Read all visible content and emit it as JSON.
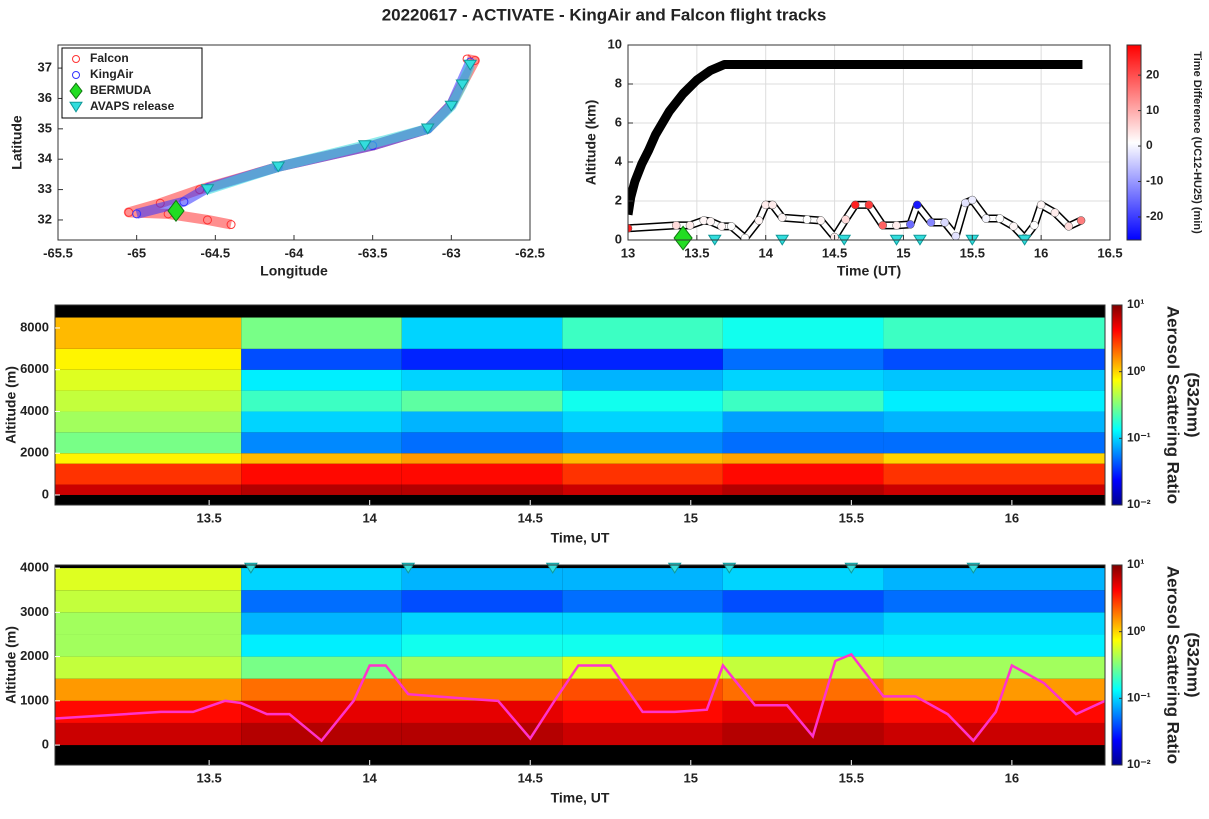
{
  "chart_data": [
    {
      "type": "scatter",
      "title": "20220617 - ACTIVATE - KingAir and Falcon flight tracks",
      "xlabel": "Longitude",
      "ylabel": "Latitude",
      "xlim": [
        -65.5,
        -62.5
      ],
      "ylim": [
        31.34,
        37.76
      ],
      "xticks": [
        -65.5,
        -65,
        -64.5,
        -64,
        -63.5,
        -63,
        -62.5
      ],
      "yticks": [
        32,
        33,
        34,
        35,
        36,
        37
      ],
      "legend": "upper left",
      "series": [
        {
          "name": "Falcon",
          "color": "#ff3333",
          "marker": "circle",
          "x": [
            -64.4,
            -64.55,
            -64.8,
            -65.05,
            -64.85,
            -64.6,
            -64.1,
            -63.5,
            -63.15,
            -63.0,
            -62.85,
            -62.9
          ],
          "values": [
            31.85,
            32.0,
            32.2,
            32.25,
            32.55,
            33.0,
            33.75,
            34.45,
            35.0,
            35.8,
            37.25,
            37.3
          ]
        },
        {
          "name": "KingAir",
          "color": "#3333ff",
          "marker": "circle",
          "x": [
            -65.0,
            -64.7,
            -64.55,
            -64.1,
            -63.5,
            -63.15,
            -63.0,
            -62.88
          ],
          "values": [
            32.2,
            32.6,
            33.05,
            33.75,
            34.45,
            35.0,
            35.8,
            37.2
          ]
        },
        {
          "name": "BERMUDA",
          "color": "#22dd22",
          "marker": "diamond",
          "x": [
            -64.75
          ],
          "values": [
            32.3
          ]
        },
        {
          "name": "AVAPS release",
          "color": "#33dddd",
          "marker": "triangle",
          "x": [
            -64.55,
            -64.1,
            -63.55,
            -63.15,
            -63.0,
            -62.93,
            -62.88
          ],
          "values": [
            33.0,
            33.75,
            34.45,
            35.0,
            35.75,
            36.45,
            37.1
          ]
        }
      ]
    },
    {
      "type": "line",
      "xlabel": "Time (UT)",
      "ylabel": "Altitude (km)",
      "xlim": [
        13,
        16.5
      ],
      "ylim": [
        0,
        10
      ],
      "xticks": [
        13,
        13.5,
        14,
        14.5,
        15,
        15.5,
        16,
        16.5
      ],
      "yticks": [
        0,
        2,
        4,
        6,
        8,
        10
      ],
      "grid": true,
      "colorbar": {
        "label": "Time Difference (UC12-HU25) (min)",
        "clim": [
          -26.5,
          28.5
        ],
        "ticks": [
          -20,
          -10,
          0,
          10,
          20
        ]
      },
      "series": [
        {
          "color": "#000000",
          "x": [
            13,
            13.02,
            13.05,
            13.1,
            13.15,
            13.2,
            13.3,
            13.4,
            13.5,
            13.6,
            13.7,
            14,
            15,
            16,
            16.3
          ],
          "values": [
            1.3,
            2.2,
            3,
            3.9,
            4.6,
            5.4,
            6.6,
            7.5,
            8.2,
            8.7,
            9,
            9,
            9,
            9,
            9
          ]
        },
        {
          "color": "#ffffff",
          "x": [
            13,
            13.35,
            13.45,
            13.55,
            13.6,
            13.68,
            13.75,
            13.85,
            13.95,
            14.0,
            14.05,
            14.12,
            14.3,
            14.4,
            14.5,
            14.58,
            14.65,
            14.75,
            14.85,
            14.95,
            15.05,
            15.1,
            15.2,
            15.3,
            15.38,
            15.45,
            15.5,
            15.6,
            15.7,
            15.8,
            15.88,
            15.95,
            16.0,
            16.1,
            16.2,
            16.29
          ],
          "values": [
            0.6,
            0.75,
            0.75,
            1.0,
            0.95,
            0.7,
            0.7,
            0.1,
            1.0,
            1.8,
            1.8,
            1.15,
            1.05,
            1.0,
            0.15,
            1.05,
            1.8,
            1.8,
            0.75,
            0.75,
            0.8,
            1.8,
            0.9,
            0.9,
            0.2,
            1.9,
            2.05,
            1.1,
            1.1,
            0.7,
            0.1,
            0.75,
            1.8,
            1.4,
            0.7,
            1.0
          ],
          "time_diff": [
            25,
            5,
            3,
            2,
            2,
            2,
            1,
            1,
            2,
            3,
            3,
            2,
            1,
            2,
            3,
            5,
            25,
            22,
            18,
            3,
            -15,
            -24,
            -12,
            -3,
            -2,
            -2,
            -1,
            0,
            1,
            2,
            1,
            1,
            2,
            3,
            5,
            15
          ]
        }
      ],
      "markers": [
        {
          "marker": "diamond",
          "color": "#22dd22",
          "x": [
            13.4
          ],
          "values": [
            0.1
          ]
        },
        {
          "marker": "triangle",
          "color": "#33dddd",
          "x": [
            13.63,
            14.12,
            14.57,
            14.95,
            15.12,
            15.5,
            15.88
          ],
          "values": [
            0,
            0,
            0,
            0,
            0,
            0,
            0
          ]
        }
      ]
    },
    {
      "type": "heatmap",
      "xlabel": "Time, UT",
      "ylabel": "Altitude (m)",
      "xlim": [
        13.02,
        16.29
      ],
      "ylim": [
        -480,
        9100
      ],
      "xticks": [
        13.5,
        14,
        14.5,
        15,
        15.5,
        16
      ],
      "yticks": [
        0,
        2000,
        4000,
        6000,
        8000
      ],
      "x_edges": [
        13.02,
        13.6,
        14.1,
        14.6,
        15.1,
        15.6,
        16.29
      ],
      "y_edges": [
        0,
        500,
        1500,
        2000,
        3000,
        4000,
        5000,
        6000,
        7000,
        8500
      ],
      "z": [
        [
          6,
          7,
          7,
          6,
          7,
          6
        ],
        [
          3,
          4,
          4,
          3,
          4,
          3
        ],
        [
          0.8,
          1.2,
          1.5,
          1.2,
          1.4,
          1.0
        ],
        [
          0.3,
          0.06,
          0.05,
          0.06,
          0.05,
          0.05
        ],
        [
          0.4,
          0.1,
          0.08,
          0.1,
          0.07,
          0.08
        ],
        [
          0.5,
          0.2,
          0.25,
          0.15,
          0.2,
          0.12
        ],
        [
          0.6,
          0.12,
          0.1,
          0.08,
          0.1,
          0.09
        ],
        [
          0.8,
          0.04,
          0.03,
          0.03,
          0.05,
          0.04
        ],
        [
          1.2,
          0.3,
          0.1,
          0.2,
          0.15,
          0.2
        ]
      ],
      "colorbar": {
        "label": [
          "Aerosol Scattering Ratio",
          "(532nm)"
        ],
        "log_scale": true,
        "clim": [
          0.01,
          10
        ],
        "ticks": [
          {
            "value": 0.01,
            "label": "10⁻²"
          },
          {
            "value": 0.1,
            "label": "10⁻¹"
          },
          {
            "value": 1,
            "label": "10⁰"
          },
          {
            "value": 10,
            "label": "10¹"
          }
        ]
      }
    },
    {
      "type": "heatmap",
      "xlabel": "Time, UT",
      "ylabel": "Altitude (m)",
      "xlim": [
        13.02,
        16.29
      ],
      "ylim": [
        -450,
        4070
      ],
      "xticks": [
        13.5,
        14,
        14.5,
        15,
        15.5,
        16
      ],
      "yticks": [
        0,
        1000,
        2000,
        3000,
        4000
      ],
      "x_edges": [
        13.02,
        13.6,
        14.1,
        14.6,
        15.1,
        15.6,
        16.29
      ],
      "y_edges": [
        0,
        500,
        1000,
        1500,
        2000,
        2500,
        3000,
        3500,
        4000
      ],
      "z": [
        [
          6,
          7,
          7,
          6,
          7,
          6
        ],
        [
          4,
          5,
          5,
          4,
          5,
          4
        ],
        [
          1.5,
          2,
          2,
          2.5,
          2,
          1.5
        ],
        [
          0.5,
          0.3,
          0.4,
          0.6,
          0.5,
          0.4
        ],
        [
          0.4,
          0.12,
          0.15,
          0.15,
          0.12,
          0.12
        ],
        [
          0.4,
          0.08,
          0.1,
          0.1,
          0.08,
          0.1
        ],
        [
          0.5,
          0.05,
          0.04,
          0.05,
          0.04,
          0.05
        ],
        [
          0.6,
          0.1,
          0.08,
          0.08,
          0.1,
          0.08
        ]
      ],
      "colorbar": {
        "label": [
          "Aerosol Scattering Ratio",
          "(532nm)"
        ],
        "log_scale": true,
        "clim": [
          0.01,
          10
        ],
        "ticks": [
          {
            "value": 0.01,
            "label": "10⁻²"
          },
          {
            "value": 0.1,
            "label": "10⁻¹"
          },
          {
            "value": 1,
            "label": "10⁰"
          },
          {
            "value": 10,
            "label": "10¹"
          }
        ]
      },
      "series": [
        {
          "color": "#ff33cc",
          "x": [
            13.02,
            13.35,
            13.45,
            13.55,
            13.6,
            13.68,
            13.75,
            13.85,
            13.95,
            14.0,
            14.05,
            14.12,
            14.3,
            14.4,
            14.5,
            14.58,
            14.65,
            14.75,
            14.85,
            14.95,
            15.05,
            15.1,
            15.2,
            15.3,
            15.38,
            15.45,
            15.5,
            15.6,
            15.7,
            15.8,
            15.88,
            15.95,
            16.0,
            16.1,
            16.2,
            16.29
          ],
          "values": [
            600,
            750,
            750,
            1000,
            950,
            700,
            700,
            100,
            1000,
            1800,
            1800,
            1150,
            1050,
            1000,
            150,
            1050,
            1800,
            1800,
            750,
            750,
            800,
            1800,
            900,
            900,
            200,
            1900,
            2050,
            1100,
            1100,
            700,
            100,
            750,
            1800,
            1400,
            700,
            1000
          ]
        }
      ],
      "markers": [
        {
          "marker": "triangle",
          "color": "#33dddd",
          "x": [
            13.63,
            14.12,
            14.57,
            14.95,
            15.12,
            15.5,
            15.88
          ],
          "values": [
            4000,
            4000,
            4000,
            4000,
            4000,
            4000,
            4000
          ]
        }
      ]
    }
  ]
}
